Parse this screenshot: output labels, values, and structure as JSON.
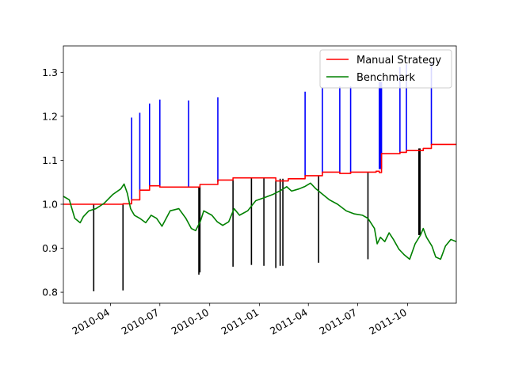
{
  "chart_data": {
    "type": "line",
    "title": "",
    "xlabel": "",
    "ylabel": "",
    "xlim": [
      "2010-01-04",
      "2011-12-30"
    ],
    "ylim": [
      0.775,
      1.36
    ],
    "x_ticks": [
      {
        "date": "2010-04-01",
        "label": "2010-04"
      },
      {
        "date": "2010-07-01",
        "label": "2010-07"
      },
      {
        "date": "2010-10-01",
        "label": "2010-10"
      },
      {
        "date": "2011-01-01",
        "label": "2011-01"
      },
      {
        "date": "2011-04-01",
        "label": "2011-04"
      },
      {
        "date": "2011-07-01",
        "label": "2011-07"
      },
      {
        "date": "2011-10-01",
        "label": "2011-10"
      }
    ],
    "y_ticks": [
      0.8,
      0.9,
      1.0,
      1.1,
      1.2,
      1.3
    ],
    "grid": false,
    "legend": {
      "placement": "top-right"
    },
    "series": [
      {
        "name": "Manual Strategy",
        "color": "#ff0000",
        "step": true,
        "points": [
          [
            "2010-01-04",
            1.0
          ],
          [
            "2010-04-24",
            1.001
          ],
          [
            "2010-05-10",
            1.01
          ],
          [
            "2010-05-25",
            1.032
          ],
          [
            "2010-06-12",
            1.042
          ],
          [
            "2010-07-01",
            1.039
          ],
          [
            "2010-08-23",
            1.039
          ],
          [
            "2010-09-13",
            1.045
          ],
          [
            "2010-10-16",
            1.055
          ],
          [
            "2010-11-13",
            1.06
          ],
          [
            "2011-01-01",
            1.06
          ],
          [
            "2011-01-31",
            1.053
          ],
          [
            "2011-02-23",
            1.058
          ],
          [
            "2011-03-26",
            1.065
          ],
          [
            "2011-04-27",
            1.073
          ],
          [
            "2011-05-29",
            1.07
          ],
          [
            "2011-06-18",
            1.073
          ],
          [
            "2011-08-04",
            1.075
          ],
          [
            "2011-08-10",
            1.072
          ],
          [
            "2011-08-14",
            1.115
          ],
          [
            "2011-09-17",
            1.118
          ],
          [
            "2011-09-29",
            1.122
          ],
          [
            "2011-10-30",
            1.127
          ],
          [
            "2011-11-14",
            1.136
          ],
          [
            "2011-12-30",
            1.136
          ]
        ]
      },
      {
        "name": "Benchmark",
        "color": "#008000",
        "step": false,
        "points": [
          [
            "2010-01-04",
            1.018
          ],
          [
            "2010-01-15",
            1.01
          ],
          [
            "2010-01-25",
            0.968
          ],
          [
            "2010-02-04",
            0.958
          ],
          [
            "2010-02-10",
            0.972
          ],
          [
            "2010-02-20",
            0.985
          ],
          [
            "2010-03-05",
            0.99
          ],
          [
            "2010-03-20",
            1.002
          ],
          [
            "2010-04-05",
            1.022
          ],
          [
            "2010-04-20",
            1.035
          ],
          [
            "2010-04-26",
            1.046
          ],
          [
            "2010-05-02",
            1.025
          ],
          [
            "2010-05-08",
            0.99
          ],
          [
            "2010-05-15",
            0.975
          ],
          [
            "2010-05-25",
            0.968
          ],
          [
            "2010-06-05",
            0.958
          ],
          [
            "2010-06-15",
            0.975
          ],
          [
            "2010-06-25",
            0.968
          ],
          [
            "2010-07-05",
            0.95
          ],
          [
            "2010-07-20",
            0.985
          ],
          [
            "2010-08-05",
            0.99
          ],
          [
            "2010-08-18",
            0.968
          ],
          [
            "2010-08-28",
            0.945
          ],
          [
            "2010-09-05",
            0.94
          ],
          [
            "2010-09-14",
            0.962
          ],
          [
            "2010-09-20",
            0.985
          ],
          [
            "2010-10-05",
            0.975
          ],
          [
            "2010-10-15",
            0.96
          ],
          [
            "2010-10-25",
            0.952
          ],
          [
            "2010-11-05",
            0.96
          ],
          [
            "2010-11-15",
            0.99
          ],
          [
            "2010-11-25",
            0.975
          ],
          [
            "2010-12-10",
            0.985
          ],
          [
            "2010-12-25",
            1.008
          ],
          [
            "2011-01-10",
            1.015
          ],
          [
            "2011-01-25",
            1.022
          ],
          [
            "2011-02-10",
            1.032
          ],
          [
            "2011-02-20",
            1.04
          ],
          [
            "2011-03-01",
            1.03
          ],
          [
            "2011-03-15",
            1.035
          ],
          [
            "2011-03-25",
            1.04
          ],
          [
            "2011-04-05",
            1.048
          ],
          [
            "2011-04-15",
            1.035
          ],
          [
            "2011-04-25",
            1.025
          ],
          [
            "2011-05-10",
            1.01
          ],
          [
            "2011-05-25",
            1.0
          ],
          [
            "2011-06-10",
            0.985
          ],
          [
            "2011-06-25",
            0.978
          ],
          [
            "2011-07-10",
            0.975
          ],
          [
            "2011-07-20",
            0.968
          ],
          [
            "2011-08-01",
            0.945
          ],
          [
            "2011-08-06",
            0.91
          ],
          [
            "2011-08-12",
            0.925
          ],
          [
            "2011-08-20",
            0.915
          ],
          [
            "2011-08-28",
            0.935
          ],
          [
            "2011-09-05",
            0.92
          ],
          [
            "2011-09-15",
            0.898
          ],
          [
            "2011-09-25",
            0.885
          ],
          [
            "2011-10-05",
            0.875
          ],
          [
            "2011-10-15",
            0.91
          ],
          [
            "2011-10-25",
            0.93
          ],
          [
            "2011-10-30",
            0.945
          ],
          [
            "2011-11-05",
            0.925
          ],
          [
            "2011-11-15",
            0.905
          ],
          [
            "2011-11-22",
            0.88
          ],
          [
            "2011-12-01",
            0.875
          ],
          [
            "2011-12-10",
            0.905
          ],
          [
            "2011-12-20",
            0.92
          ],
          [
            "2011-12-30",
            0.915
          ]
        ]
      }
    ],
    "vlines": [
      {
        "color": "#0000ff",
        "from": 1.0,
        "to": 1.197,
        "dates": [
          "2010-05-10"
        ]
      },
      {
        "color": "#0000ff",
        "from": 1.03,
        "to": 1.208,
        "dates": [
          "2010-05-25"
        ]
      },
      {
        "color": "#0000ff",
        "from": 1.04,
        "to": 1.229,
        "dates": [
          "2010-06-12"
        ]
      },
      {
        "color": "#0000ff",
        "from": 1.04,
        "to": 1.238,
        "dates": [
          "2010-07-01"
        ]
      },
      {
        "color": "#0000ff",
        "from": 1.04,
        "to": 1.236,
        "dates": [
          "2010-08-23"
        ]
      },
      {
        "color": "#0000ff",
        "from": 1.05,
        "to": 1.243,
        "dates": [
          "2010-10-16"
        ]
      },
      {
        "color": "#0000ff",
        "from": 1.065,
        "to": 1.256,
        "dates": [
          "2011-03-26"
        ]
      },
      {
        "color": "#0000ff",
        "from": 1.07,
        "to": 1.265,
        "dates": [
          "2011-04-27"
        ]
      },
      {
        "color": "#0000ff",
        "from": 1.07,
        "to": 1.268,
        "dates": [
          "2011-05-29"
        ]
      },
      {
        "color": "#0000ff",
        "from": 1.07,
        "to": 1.268,
        "dates": [
          "2011-06-18"
        ]
      },
      {
        "color": "#0000ff",
        "from": 1.08,
        "to": 1.278,
        "dates": [
          "2011-08-10",
          "2011-08-11",
          "2011-08-12",
          "2011-08-13",
          "2011-08-14"
        ]
      },
      {
        "color": "#0000ff",
        "from": 1.115,
        "to": 1.312,
        "dates": [
          "2011-09-17"
        ]
      },
      {
        "color": "#0000ff",
        "from": 1.12,
        "to": 1.318,
        "dates": [
          "2011-09-29"
        ]
      },
      {
        "color": "#0000ff",
        "from": 1.135,
        "to": 1.322,
        "dates": [
          "2011-11-14"
        ]
      },
      {
        "color": "#000000",
        "from": 0.802,
        "to": 1.0,
        "dates": [
          "2010-03-01"
        ]
      },
      {
        "color": "#000000",
        "from": 0.804,
        "to": 1.001,
        "dates": [
          "2010-04-24"
        ]
      },
      {
        "color": "#000000",
        "from": 0.84,
        "to": 1.04,
        "dates": [
          "2010-09-11"
        ]
      },
      {
        "color": "#000000",
        "from": 0.845,
        "to": 1.04,
        "dates": [
          "2010-09-13"
        ]
      },
      {
        "color": "#000000",
        "from": 0.858,
        "to": 1.055,
        "dates": [
          "2010-11-13"
        ]
      },
      {
        "color": "#000000",
        "from": 0.862,
        "to": 1.06,
        "dates": [
          "2010-12-17"
        ]
      },
      {
        "color": "#000000",
        "from": 0.86,
        "to": 1.06,
        "dates": [
          "2011-01-09"
        ]
      },
      {
        "color": "#000000",
        "from": 0.855,
        "to": 1.053,
        "dates": [
          "2011-01-31"
        ]
      },
      {
        "color": "#000000",
        "from": 0.86,
        "to": 1.058,
        "dates": [
          "2011-02-08"
        ]
      },
      {
        "color": "#000000",
        "from": 0.86,
        "to": 1.058,
        "dates": [
          "2011-02-13"
        ]
      },
      {
        "color": "#000000",
        "from": 0.867,
        "to": 1.065,
        "dates": [
          "2011-04-20"
        ]
      },
      {
        "color": "#000000",
        "from": 0.875,
        "to": 1.073,
        "dates": [
          "2011-07-20"
        ]
      },
      {
        "color": "#000000",
        "from": 0.93,
        "to": 1.127,
        "dates": [
          "2011-10-22",
          "2011-10-23",
          "2011-10-24"
        ]
      }
    ]
  }
}
